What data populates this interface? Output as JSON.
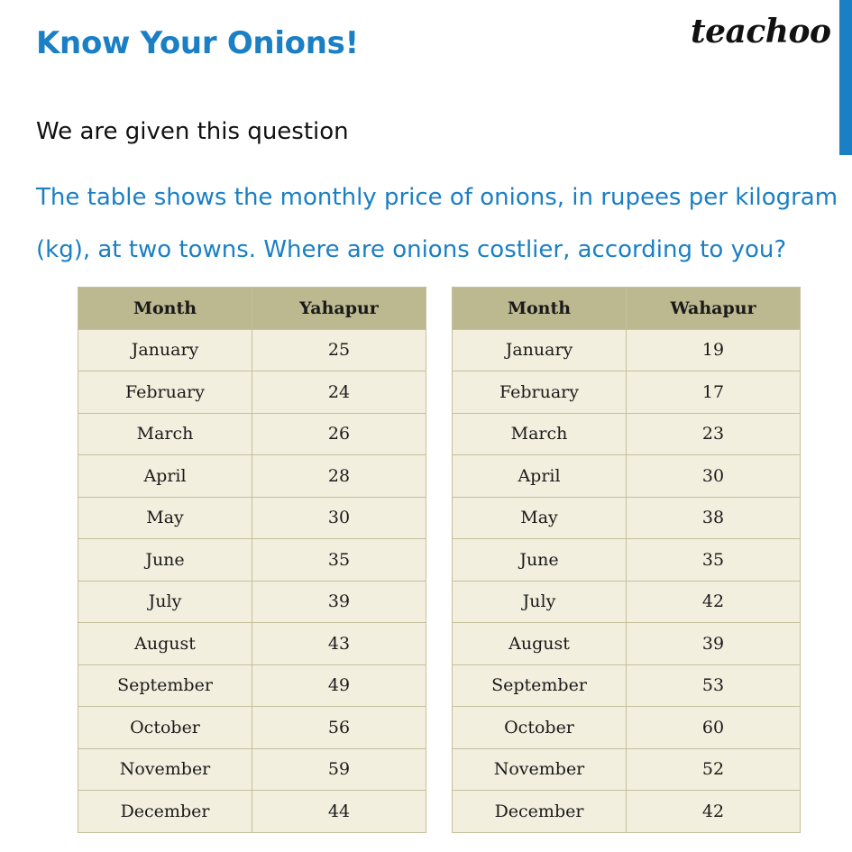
{
  "page": {
    "title": "Know Your Onions!",
    "brand": "teachoo",
    "intro": "We are given this question",
    "question": "The table shows the monthly price of onions, in rupees per kilogram (kg), at two towns. Where are onions costlier, according to you?"
  },
  "colors": {
    "accent": "#1a7fc4",
    "table_header": "#bcb890",
    "table_cell": "#f3efde",
    "table_border": "#c5bf9b"
  },
  "tables": [
    {
      "headers": [
        "Month",
        "Yahapur"
      ],
      "rows": [
        [
          "January",
          "25"
        ],
        [
          "February",
          "24"
        ],
        [
          "March",
          "26"
        ],
        [
          "April",
          "28"
        ],
        [
          "May",
          "30"
        ],
        [
          "June",
          "35"
        ],
        [
          "July",
          "39"
        ],
        [
          "August",
          "43"
        ],
        [
          "September",
          "49"
        ],
        [
          "October",
          "56"
        ],
        [
          "November",
          "59"
        ],
        [
          "December",
          "44"
        ]
      ]
    },
    {
      "headers": [
        "Month",
        "Wahapur"
      ],
      "rows": [
        [
          "January",
          "19"
        ],
        [
          "February",
          "17"
        ],
        [
          "March",
          "23"
        ],
        [
          "April",
          "30"
        ],
        [
          "May",
          "38"
        ],
        [
          "June",
          "35"
        ],
        [
          "July",
          "42"
        ],
        [
          "August",
          "39"
        ],
        [
          "September",
          "53"
        ],
        [
          "October",
          "60"
        ],
        [
          "November",
          "52"
        ],
        [
          "December",
          "42"
        ]
      ]
    }
  ]
}
